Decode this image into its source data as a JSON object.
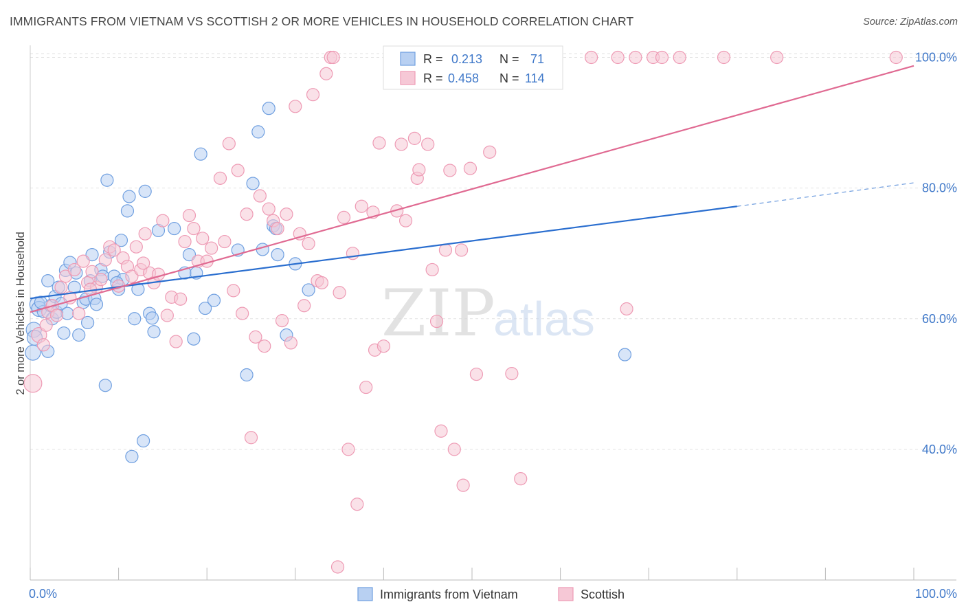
{
  "title": "IMMIGRANTS FROM VIETNAM VS SCOTTISH 2 OR MORE VEHICLES IN HOUSEHOLD CORRELATION CHART",
  "source": "Source: ZipAtlas.com",
  "watermark": {
    "zip": "ZIP",
    "atlas": "atlas"
  },
  "chart_data": {
    "type": "scatter",
    "xlabel": "",
    "ylabel": "2 or more Vehicles in Household",
    "xlim": [
      0,
      100
    ],
    "ylim": [
      20,
      101
    ],
    "x_tick_labels": {
      "left": "0.0%",
      "right": "100.0%"
    },
    "y_ticks": [
      {
        "value": 40,
        "label": "40.0%"
      },
      {
        "value": 60,
        "label": "60.0%"
      },
      {
        "value": 80,
        "label": "80.0%"
      },
      {
        "value": 100,
        "label": "100.0%"
      }
    ],
    "grid": true,
    "legend_position": "top-center",
    "stats": [
      {
        "r_label": "R =",
        "r": "0.213",
        "n_label": "N =",
        "n": "71"
      },
      {
        "r_label": "R =",
        "r": "0.458",
        "n_label": "N =",
        "n": "114"
      }
    ],
    "series": [
      {
        "name": "Immigrants from Vietnam",
        "color": "#6f9fe0",
        "fill": "#b8d0f2",
        "line_color": "#2a6ecf",
        "trend": {
          "x0": 0,
          "y0": 63.1,
          "x1": 80,
          "y1": 77.2,
          "dash_to_x": 100,
          "dash_to_y": 80.8
        },
        "points": [
          [
            0.3,
            54.8
          ],
          [
            0.4,
            58.3
          ],
          [
            0.5,
            57.1
          ],
          [
            0.8,
            62.2
          ],
          [
            1.0,
            61.5
          ],
          [
            1.5,
            61.1
          ],
          [
            2.0,
            55.0
          ],
          [
            2.0,
            65.8
          ],
          [
            2.3,
            62.0
          ],
          [
            2.5,
            60.0
          ],
          [
            2.8,
            63.4
          ],
          [
            3.0,
            61.0
          ],
          [
            3.5,
            62.3
          ],
          [
            3.8,
            57.8
          ],
          [
            4.0,
            67.4
          ],
          [
            4.2,
            60.8
          ],
          [
            4.5,
            68.6
          ],
          [
            5.0,
            64.8
          ],
          [
            5.2,
            67.0
          ],
          [
            5.5,
            57.5
          ],
          [
            6.0,
            62.5
          ],
          [
            6.3,
            63.0
          ],
          [
            6.5,
            59.4
          ],
          [
            6.8,
            65.8
          ],
          [
            7.0,
            69.8
          ],
          [
            7.3,
            63.1
          ],
          [
            7.5,
            62.2
          ],
          [
            8.0,
            67.5
          ],
          [
            8.2,
            66.5
          ],
          [
            8.5,
            49.8
          ],
          [
            8.7,
            81.2
          ],
          [
            9.0,
            70.2
          ],
          [
            9.5,
            66.5
          ],
          [
            10.0,
            64.5
          ],
          [
            10.5,
            66.0
          ],
          [
            10.3,
            72.0
          ],
          [
            11.0,
            76.5
          ],
          [
            11.2,
            78.7
          ],
          [
            11.5,
            38.9
          ],
          [
            11.8,
            60.0
          ],
          [
            12.2,
            64.5
          ],
          [
            12.8,
            41.3
          ],
          [
            13.0,
            79.5
          ],
          [
            13.5,
            60.8
          ],
          [
            13.8,
            60.1
          ],
          [
            14.0,
            58.0
          ],
          [
            14.5,
            73.5
          ],
          [
            16.3,
            73.8
          ],
          [
            17.5,
            67.0
          ],
          [
            18.0,
            69.8
          ],
          [
            18.5,
            56.9
          ],
          [
            18.8,
            67.0
          ],
          [
            19.3,
            85.2
          ],
          [
            19.8,
            61.6
          ],
          [
            20.8,
            62.8
          ],
          [
            23.5,
            70.5
          ],
          [
            24.5,
            51.4
          ],
          [
            25.2,
            80.7
          ],
          [
            25.8,
            88.6
          ],
          [
            26.3,
            70.6
          ],
          [
            27.0,
            92.2
          ],
          [
            27.5,
            74.2
          ],
          [
            27.8,
            73.8
          ],
          [
            28.0,
            69.8
          ],
          [
            29.0,
            57.5
          ],
          [
            30.0,
            68.4
          ],
          [
            31.5,
            64.4
          ],
          [
            67.3,
            54.5
          ],
          [
            1.2,
            62.5
          ],
          [
            3.2,
            64.8
          ],
          [
            9.8,
            65.5
          ]
        ]
      },
      {
        "name": "Scottish",
        "color": "#ee9ab4",
        "fill": "#f6c8d6",
        "line_color": "#e06a92",
        "trend": {
          "x0": 0,
          "y0": 61.0,
          "x1": 100,
          "y1": 98.7
        },
        "points": [
          [
            0.3,
            50.1
          ],
          [
            1.0,
            57.5
          ],
          [
            1.5,
            56.0
          ],
          [
            2.0,
            61.0
          ],
          [
            2.5,
            62.0
          ],
          [
            3.0,
            60.5
          ],
          [
            3.5,
            64.8
          ],
          [
            4.0,
            66.5
          ],
          [
            4.5,
            63.2
          ],
          [
            5.0,
            67.5
          ],
          [
            5.5,
            60.8
          ],
          [
            6.0,
            68.8
          ],
          [
            6.5,
            65.5
          ],
          [
            7.0,
            67.2
          ],
          [
            7.5,
            64.8
          ],
          [
            8.0,
            66.0
          ],
          [
            8.5,
            69.0
          ],
          [
            9.0,
            71.0
          ],
          [
            9.5,
            70.5
          ],
          [
            10.0,
            65.0
          ],
          [
            10.5,
            69.3
          ],
          [
            11.0,
            68.0
          ],
          [
            11.5,
            66.5
          ],
          [
            12.0,
            71.0
          ],
          [
            12.5,
            67.5
          ],
          [
            13.0,
            73.0
          ],
          [
            13.5,
            67.0
          ],
          [
            14.0,
            65.5
          ],
          [
            14.5,
            66.8
          ],
          [
            15.0,
            75.0
          ],
          [
            15.5,
            60.5
          ],
          [
            16.0,
            63.3
          ],
          [
            16.5,
            56.5
          ],
          [
            17.0,
            63.0
          ],
          [
            17.5,
            71.8
          ],
          [
            18.0,
            75.8
          ],
          [
            18.5,
            73.8
          ],
          [
            19.0,
            68.8
          ],
          [
            19.5,
            72.3
          ],
          [
            20.0,
            68.8
          ],
          [
            20.5,
            70.8
          ],
          [
            21.5,
            81.5
          ],
          [
            22.0,
            71.8
          ],
          [
            22.5,
            86.8
          ],
          [
            23.0,
            64.3
          ],
          [
            23.5,
            82.7
          ],
          [
            24.0,
            60.8
          ],
          [
            24.5,
            76.0
          ],
          [
            25.0,
            41.8
          ],
          [
            25.5,
            57.2
          ],
          [
            26.0,
            78.8
          ],
          [
            26.5,
            55.8
          ],
          [
            27.0,
            76.8
          ],
          [
            27.5,
            75.0
          ],
          [
            28.0,
            73.8
          ],
          [
            28.5,
            59.7
          ],
          [
            29.0,
            76.0
          ],
          [
            29.5,
            56.3
          ],
          [
            30.0,
            92.5
          ],
          [
            30.5,
            73.0
          ],
          [
            31.0,
            62.0
          ],
          [
            31.5,
            71.5
          ],
          [
            32.0,
            94.3
          ],
          [
            32.5,
            65.8
          ],
          [
            33.0,
            65.5
          ],
          [
            33.5,
            97.5
          ],
          [
            34.0,
            100.0
          ],
          [
            34.3,
            100.0
          ],
          [
            34.8,
            22.0
          ],
          [
            35.0,
            64.0
          ],
          [
            35.5,
            75.5
          ],
          [
            36.0,
            40.0
          ],
          [
            36.5,
            70.0
          ],
          [
            37.0,
            31.6
          ],
          [
            37.5,
            77.2
          ],
          [
            38.0,
            49.5
          ],
          [
            38.8,
            76.3
          ],
          [
            39.0,
            55.2
          ],
          [
            39.5,
            86.9
          ],
          [
            40.0,
            55.8
          ],
          [
            41.5,
            76.5
          ],
          [
            42.0,
            86.7
          ],
          [
            42.5,
            75.0
          ],
          [
            43.5,
            87.6
          ],
          [
            43.8,
            81.5
          ],
          [
            44.0,
            82.8
          ],
          [
            45.0,
            86.7
          ],
          [
            45.5,
            67.5
          ],
          [
            46.0,
            59.6
          ],
          [
            46.5,
            42.8
          ],
          [
            47.0,
            70.5
          ],
          [
            47.5,
            82.7
          ],
          [
            48.0,
            40.0
          ],
          [
            48.8,
            70.5
          ],
          [
            49.0,
            34.5
          ],
          [
            49.8,
            83.0
          ],
          [
            50.5,
            51.5
          ],
          [
            52.0,
            85.5
          ],
          [
            54.5,
            51.6
          ],
          [
            55.5,
            35.5
          ],
          [
            58.5,
            100.0
          ],
          [
            63.5,
            100.0
          ],
          [
            66.5,
            100.0
          ],
          [
            67.5,
            61.5
          ],
          [
            68.5,
            100.0
          ],
          [
            70.5,
            100.0
          ],
          [
            71.5,
            100.0
          ],
          [
            73.5,
            100.0
          ],
          [
            78.5,
            100.0
          ],
          [
            84.5,
            100.0
          ],
          [
            98.0,
            100.0
          ],
          [
            1.8,
            59.0
          ],
          [
            6.8,
            64.5
          ],
          [
            12.8,
            68.5
          ]
        ]
      }
    ]
  }
}
